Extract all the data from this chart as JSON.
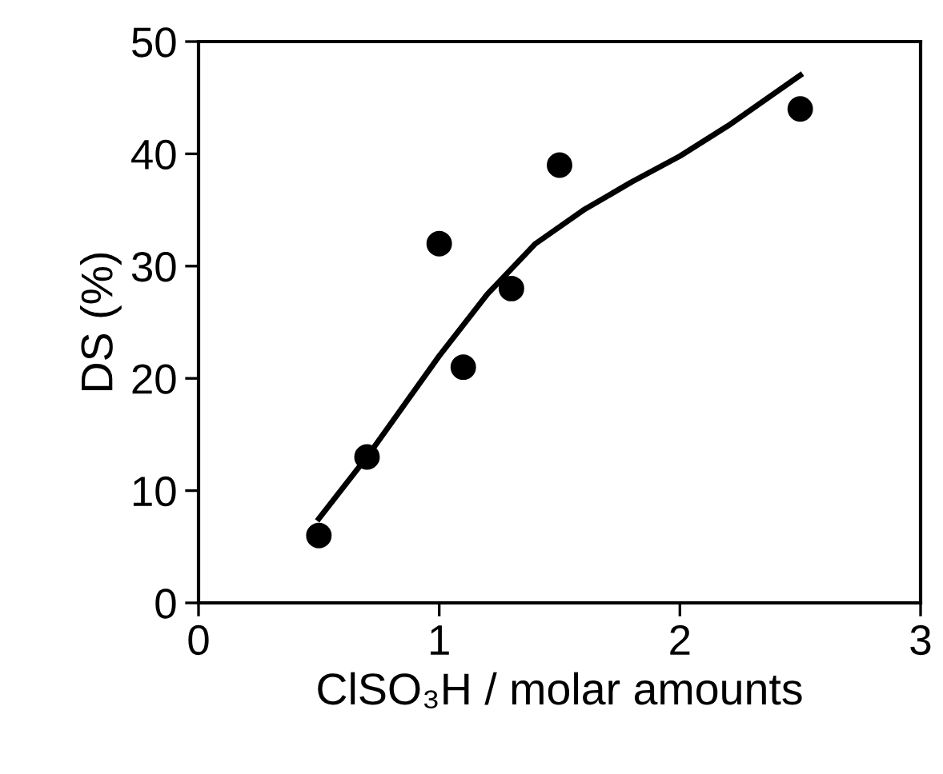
{
  "chart_data": {
    "type": "line",
    "xlabel": "ClSO₃H / molar amounts",
    "ylabel": "DS (%)",
    "xlim": [
      0,
      3
    ],
    "ylim": [
      0,
      50
    ],
    "xticks": [
      0,
      1,
      2,
      3
    ],
    "yticks": [
      0,
      10,
      20,
      30,
      40,
      50
    ],
    "grid": false,
    "legend": false,
    "series": [
      {
        "type": "scatter",
        "marker": "circle",
        "color": "#000000",
        "x": [
          0.5,
          0.7,
          1.0,
          1.1,
          1.3,
          1.5,
          2.5
        ],
        "values": [
          6,
          13,
          32,
          21,
          28,
          39,
          44
        ]
      },
      {
        "marker": "none",
        "color": "#000000",
        "line_style": "solid",
        "x": [
          0.5,
          0.7,
          0.9,
          1.0,
          1.2,
          1.4,
          1.6,
          1.8,
          2.0,
          2.2,
          2.5
        ],
        "values": [
          7.5,
          13,
          19,
          22,
          27.5,
          32,
          35,
          37.5,
          39.8,
          42.5,
          47
        ]
      }
    ]
  }
}
